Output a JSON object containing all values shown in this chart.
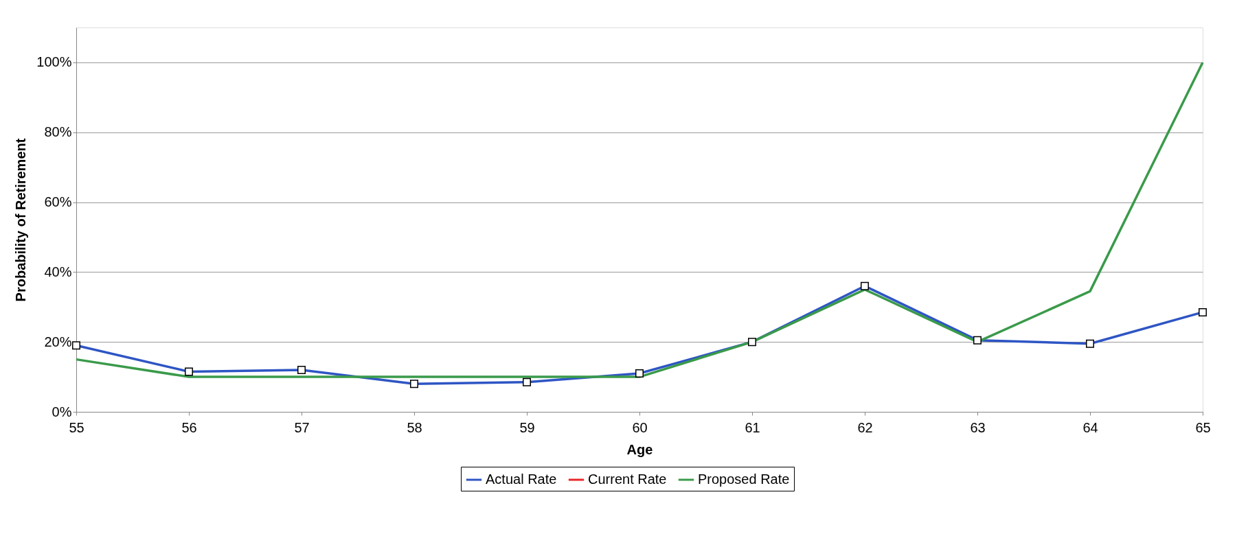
{
  "chart_data": {
    "type": "line",
    "xlabel": "Age",
    "ylabel": "Probability of Retirement",
    "categories": [
      "55",
      "56",
      "57",
      "58",
      "59",
      "60",
      "61",
      "62",
      "63",
      "64",
      "65"
    ],
    "series": [
      {
        "name": "Actual Rate",
        "color": "#2e55c4",
        "marker": "square",
        "values": [
          19,
          11.5,
          12,
          8,
          8.5,
          11,
          20,
          36,
          20.5,
          19.5,
          28.5
        ]
      },
      {
        "name": "Current Rate",
        "color": "#e8262a",
        "marker": "none",
        "values": [
          null,
          null,
          null,
          null,
          null,
          null,
          null,
          null,
          null,
          null,
          null
        ]
      },
      {
        "name": "Proposed Rate",
        "color": "#3a9a4a",
        "marker": "none",
        "values": [
          15,
          10,
          10,
          10,
          10,
          10,
          20,
          35,
          20,
          34.5,
          100
        ]
      }
    ],
    "ylim": [
      0,
      110
    ],
    "yticks": [
      {
        "value": 0,
        "label": "0%"
      },
      {
        "value": 20,
        "label": "20%"
      },
      {
        "value": 40,
        "label": "40%"
      },
      {
        "value": 60,
        "label": "60%"
      },
      {
        "value": 80,
        "label": "80%"
      },
      {
        "value": 100,
        "label": "100%"
      }
    ],
    "grid": "y",
    "legend": "bottom",
    "line_style": "solid"
  }
}
